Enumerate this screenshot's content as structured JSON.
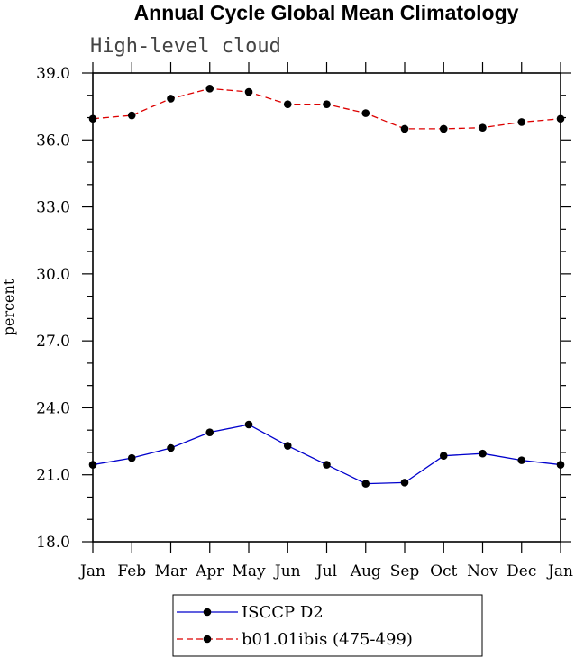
{
  "chart_data": {
    "type": "line",
    "title": "Annual Cycle Global Mean Climatology",
    "subtitle": "High-level cloud",
    "xlabel": "",
    "ylabel": "percent",
    "categories": [
      "Jan",
      "Feb",
      "Mar",
      "Apr",
      "May",
      "Jun",
      "Jul",
      "Aug",
      "Sep",
      "Oct",
      "Nov",
      "Dec",
      "Jan"
    ],
    "ylim": [
      18.0,
      39.0
    ],
    "yticks": [
      "18.0",
      "21.0",
      "24.0",
      "27.0",
      "30.0",
      "33.0",
      "36.0",
      "39.0"
    ],
    "series": [
      {
        "name": "ISCCP D2",
        "color": "#0000cc",
        "dash": "solid",
        "values": [
          21.45,
          21.75,
          22.2,
          22.9,
          23.25,
          22.3,
          21.45,
          20.6,
          20.65,
          21.85,
          21.95,
          21.65,
          21.45
        ]
      },
      {
        "name": "b01.01ibis (475-499)",
        "color": "#dd0000",
        "dash": "dashed",
        "values": [
          36.95,
          37.1,
          37.85,
          38.3,
          38.15,
          37.6,
          37.6,
          37.2,
          36.5,
          36.5,
          36.55,
          36.8,
          36.95
        ]
      }
    ],
    "legend_position": "bottom-center",
    "grid": false
  }
}
